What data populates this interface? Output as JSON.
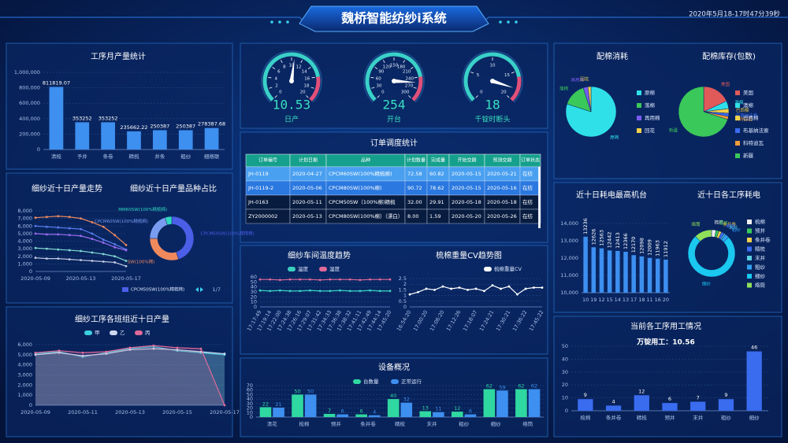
{
  "header": {
    "title": "魏桥智能纺纱i系统",
    "time": "2020年5月18-17时47分39秒"
  },
  "table": {
    "title": "订单调度统计",
    "columns": [
      "订单编号",
      "计划日期",
      "品种",
      "计划数量",
      "完成量",
      "开始交期",
      "预测交期",
      "订单状态"
    ],
    "rows": [
      [
        "JH-0119",
        "2020-04-27",
        "CPCM60SW(100%精梳棉)",
        "72.58",
        "60.82",
        "2020-05-15",
        "2020-05-21",
        "在纺"
      ],
      [
        "JH-0119-2",
        "2020-05-06",
        "CPCM80SW(100%棉)",
        "90.72",
        "78.62",
        "2020-05-15",
        "2020-05-16",
        "在纺"
      ],
      [
        "JH-0163",
        "2020-05-11",
        "CPCM50SW（100%棉)精梳",
        "32.00",
        "29.91",
        "2020-05-18",
        "2020-05-18",
        "在纺"
      ],
      [
        "ZY2000002",
        "2020-05-13",
        "CPCM80SW(100%棉）（漂白）",
        "8.00",
        "1.59",
        "2020-05-20",
        "2020-05-26",
        "在纺"
      ]
    ]
  },
  "chart_data": [
    {
      "type": "bar",
      "title": "工序月产量统计",
      "categories": [
        "清梳",
        "予并",
        "条卷",
        "精梳",
        "并条",
        "粗纱",
        "细络联"
      ],
      "values": [
        811819.07,
        353252,
        353252,
        235662.22,
        250387,
        250387,
        278387.68
      ],
      "color": "#3d8ff0",
      "show_values": true,
      "ylim": [
        0,
        1000000
      ],
      "yticks": [
        0,
        {
          "value": 200000,
          "label": "200,000"
        },
        {
          "value": 400000,
          "label": "400,000"
        },
        {
          "value": 600000,
          "label": "600,000"
        },
        {
          "value": 800000,
          "label": "800,000"
        },
        {
          "value": 1000000,
          "label": "1,000,000"
        }
      ]
    },
    {
      "type": "line",
      "title": "细纱近十日产量走势",
      "categories": [
        "2020-05-09",
        null,
        null,
        null,
        "2020-05-13",
        null,
        null,
        null,
        "2020-05-17"
      ],
      "ylim": [
        0,
        8000
      ],
      "yticks": [
        0,
        {
          "value": 1000,
          "label": "1,000"
        },
        {
          "value": 2000,
          "label": "2,000"
        },
        {
          "value": 3000,
          "label": "3,000"
        },
        {
          "value": 4000,
          "label": "4,000"
        },
        {
          "value": 5000,
          "label": "5,000"
        },
        {
          "value": 6000,
          "label": "6,000"
        },
        {
          "value": 7000,
          "label": "7,000"
        },
        {
          "value": 8000,
          "label": "8,000"
        }
      ],
      "series": [
        {
          "color": "#f08a5d",
          "values": [
            7100,
            7200,
            7300,
            7200,
            7000,
            6500,
            5900,
            4800,
            3500
          ]
        },
        {
          "color": "#5a7cf0",
          "values": [
            6000,
            5900,
            5800,
            5700,
            5600,
            5000,
            4200,
            3600,
            2900
          ]
        },
        {
          "color": "#9b6cf0",
          "values": [
            5000,
            4900,
            4900,
            4800,
            4700,
            4300,
            3800,
            3200,
            2800
          ]
        },
        {
          "color": "#7fd8d0",
          "values": [
            3100,
            3000,
            2900,
            2800,
            2700,
            2500,
            2300,
            2000,
            1400
          ]
        },
        {
          "color": "#c0c8e0",
          "values": [
            1800,
            1700,
            1700,
            1600,
            1500,
            1400,
            1300,
            1200,
            700
          ]
        }
      ]
    },
    {
      "type": "donut",
      "title": "细纱近十日产量品种占比",
      "categories": [
        "CPCM50SW(100%精梳棉)",
        "SW(100%棉)",
        "CPCM60SW(100%精梳棉)",
        "MM60SW(100%精梳棉)"
      ],
      "values": [
        45,
        30,
        20,
        5
      ],
      "colors": [
        "#4a5ee8",
        "#f08a5d",
        "#7a9cf0",
        "#2fd8c0"
      ],
      "pager": "1/7"
    },
    {
      "type": "area",
      "title": "细纱工序各班组近十日产量",
      "categories": [
        "2020-05-09",
        null,
        "2020-05-11",
        null,
        "2020-05-13",
        null,
        "2020-05-15",
        null,
        "2020-05-17"
      ],
      "ylim": [
        0,
        6000
      ],
      "yticks": [
        0,
        {
          "value": 1000,
          "label": "1,000"
        },
        {
          "value": 2000,
          "label": "2,000"
        },
        {
          "value": 3000,
          "label": "3,000"
        },
        {
          "value": 4000,
          "label": "4,000"
        },
        {
          "value": 5000,
          "label": "5,000"
        },
        {
          "value": 6000,
          "label": "6,000"
        }
      ],
      "series": [
        {
          "name": "甲",
          "color": "#3ad0e0",
          "values": [
            5100,
            5300,
            4800,
            5200,
            5600,
            5800,
            5400,
            5200,
            5000
          ]
        },
        {
          "name": "乙",
          "color": "#d0d8f0",
          "values": [
            5000,
            5200,
            4900,
            5100,
            5500,
            5600,
            5500,
            5300,
            5100
          ]
        },
        {
          "name": "丙",
          "color": "#e06a9a",
          "values": [
            5200,
            5400,
            5200,
            5300,
            5700,
            5900,
            5700,
            5600,
            0
          ]
        }
      ]
    },
    {
      "type": "gauge",
      "label": "日产",
      "value": 10.53,
      "ylim": [
        0,
        20
      ],
      "yticks": [
        0,
        2,
        4,
        6,
        8,
        10,
        12,
        14,
        16,
        18,
        20
      ]
    },
    {
      "type": "gauge",
      "label": "开台",
      "value": 254,
      "ylim": [
        0,
        300
      ],
      "yticks": [
        0,
        30,
        60,
        90,
        120,
        150,
        180,
        210,
        240,
        270,
        300
      ]
    },
    {
      "type": "gauge",
      "label": "千锭时断头",
      "value": 18,
      "ylim": [
        0,
        20
      ],
      "yticks": [
        0,
        5,
        10,
        15,
        20
      ]
    },
    {
      "type": "line",
      "title": "细纱车间温度趋势",
      "categories": [
        "17:17:49",
        "17:19:14",
        "17:22:00",
        "17:24:38",
        "17:26:16",
        "17:29:07",
        "17:31:42",
        "17:34:33",
        "17:36:38",
        "17:38:32",
        "17:41:11",
        "17:42:49",
        "17:44:14",
        "17:45:20"
      ],
      "ylim": [
        0,
        60
      ],
      "yticks": [
        0,
        10,
        20,
        30,
        40,
        50,
        60
      ],
      "series": [
        {
          "name": "温度",
          "color": "#3ad0c0",
          "values": [
            33,
            32,
            33,
            32,
            32,
            33,
            32,
            32,
            33,
            32,
            32,
            33,
            32,
            32
          ]
        },
        {
          "name": "湿度",
          "color": "#e06a9a",
          "values": [
            55,
            55,
            54,
            55,
            55,
            55,
            54,
            55,
            55,
            55,
            54,
            55,
            55,
            55
          ]
        }
      ]
    },
    {
      "type": "line",
      "title": "梳棉重量CV趋势图",
      "categories": [
        "16:54:20",
        null,
        "17:00:20",
        null,
        "17:06:20",
        null,
        "17:12:26",
        null,
        "17:18:07",
        null,
        "17:24:21",
        null,
        "17:30:21",
        null,
        "17:36:22",
        null,
        "17:45:22"
      ],
      "ylim": [
        0,
        2.5
      ],
      "yticks": [
        0,
        0.5,
        1,
        1.5,
        2,
        2.5
      ],
      "series": [
        {
          "name": "梳棉重量CV",
          "color": "#ffffff",
          "values": [
            1.1,
            1.3,
            1.6,
            1.5,
            1.8,
            1.6,
            1.7,
            1.5,
            1.6,
            1.4,
            1.9,
            1.6,
            1.8,
            1.1,
            1.6,
            1.7,
            1.7
          ]
        }
      ]
    },
    {
      "type": "groupbar",
      "title": "设备概况",
      "categories": [
        "清花",
        "梳棉",
        "预并",
        "条并卷",
        "精梳",
        "末并",
        "粗纱",
        "细纱",
        "络筒"
      ],
      "ylim": [
        0,
        70
      ],
      "yticks": [
        0,
        10,
        20,
        30,
        40,
        50,
        60,
        70
      ],
      "series": [
        {
          "name": "台数量",
          "color": "#2fd8a0",
          "values": [
            22,
            50,
            7,
            6,
            40,
            13,
            12,
            62,
            62
          ]
        },
        {
          "name": "正常运行",
          "color": "#3d8ff0",
          "values": [
            21,
            50,
            6,
            4,
            32,
            11,
            6,
            59,
            62
          ]
        }
      ]
    },
    {
      "type": "pie",
      "title": "配棉消耗",
      "categories": [
        "原棉",
        "落棉",
        "再用棉",
        "回花"
      ],
      "values": [
        80,
        15,
        3,
        2
      ],
      "colors": [
        "#2fe0e8",
        "#3ac85a",
        "#7a5cf0",
        "#f0d04a"
      ]
    },
    {
      "type": "pie",
      "title": "配棉库存(包数)",
      "categories": [
        "美国",
        "澳棉",
        "巴西棉",
        "布基纳法索",
        "科特迪瓦",
        "新疆"
      ],
      "values": [
        18,
        5,
        3,
        2,
        2,
        70
      ],
      "colors": [
        "#e05a5a",
        "#2fe0e8",
        "#f0d04a",
        "#3a6cf0",
        "#f09a3a",
        "#3ac85a"
      ]
    },
    {
      "type": "bar",
      "title": "近十日耗电最高机台",
      "categories": [
        "10",
        "19",
        "12",
        "15",
        "14",
        "13",
        "17",
        "18",
        "11",
        "16",
        "20"
      ],
      "values": [
        13236,
        12626,
        12563,
        12442,
        12413,
        12366,
        12170,
        12098,
        12009,
        11963,
        11912
      ],
      "color": "#3d8ff0",
      "show_values": true,
      "ylim": [
        10000,
        14000
      ],
      "yticks": [
        {
          "value": 10000,
          "label": "10,000"
        },
        {
          "value": 11000,
          "label": "11,000"
        },
        {
          "value": 12000,
          "label": "12,000"
        },
        {
          "value": 13000,
          "label": "13,000"
        },
        {
          "value": 14000,
          "label": "14,000"
        }
      ]
    },
    {
      "type": "donut",
      "title": "近十日各工序耗电",
      "categories": [
        "梳棉",
        "预并",
        "条并卷",
        "精梳",
        "末并",
        "粗纱",
        "细纱",
        "络筒"
      ],
      "values": [
        3,
        2,
        2,
        2,
        1,
        3,
        75,
        12
      ],
      "colors": [
        "#f0f0f0",
        "#3ac85a",
        "#f0d04a",
        "#3a6cf0",
        "#5ad0e0",
        "#2fa0f0",
        "#1ac8f0",
        "#90e05a"
      ]
    },
    {
      "type": "bar",
      "title": "当前各工序用工情况",
      "annotation": "万锭用工：10.56",
      "categories": [
        "梳棉",
        "条并卷",
        "精梳",
        "预并",
        "末并",
        "粗纱",
        "细纱"
      ],
      "values": [
        9,
        4,
        12,
        6,
        7,
        9,
        46
      ],
      "color": "#3a6cf0",
      "show_values": true,
      "ylim": [
        0,
        50
      ],
      "yticks": [
        0,
        10,
        20,
        30,
        40,
        50
      ]
    }
  ]
}
